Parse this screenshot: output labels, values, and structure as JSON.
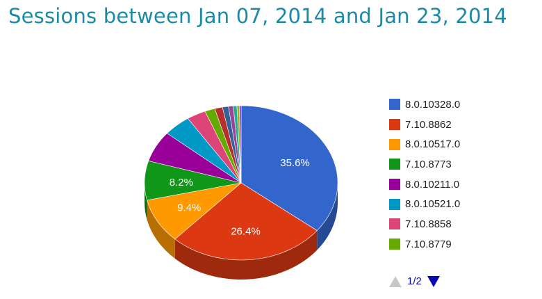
{
  "chart_data": {
    "type": "pie",
    "title": "Sessions between Jan 07, 2014 and Jan 23, 2014",
    "slices": [
      {
        "label": "8.0.10328.0",
        "value": 35.6,
        "color": "#3366cc",
        "data_label": "35.6%"
      },
      {
        "label": "7.10.8862",
        "value": 26.4,
        "color": "#dc3912",
        "data_label": "26.4%"
      },
      {
        "label": "8.0.10517.0",
        "value": 9.4,
        "color": "#ff9900",
        "data_label": "9.4%"
      },
      {
        "label": "7.10.8773",
        "value": 8.2,
        "color": "#109618",
        "data_label": "8.2%"
      },
      {
        "label": "8.0.10211.0",
        "value": 6.5,
        "color": "#990099",
        "data_label": ""
      },
      {
        "label": "8.0.10521.0",
        "value": 4.6,
        "color": "#0099c6",
        "data_label": ""
      },
      {
        "label": "7.10.8858",
        "value": 3.2,
        "color": "#dd4477",
        "data_label": ""
      },
      {
        "label": "7.10.8779",
        "value": 1.7,
        "color": "#66aa00",
        "data_label": ""
      },
      {
        "value": 1.3,
        "color": "#b82e2e",
        "data_label": ""
      },
      {
        "value": 1.0,
        "color": "#316395",
        "data_label": ""
      },
      {
        "value": 0.8,
        "color": "#994499",
        "data_label": ""
      },
      {
        "value": 0.6,
        "color": "#22aa99",
        "data_label": ""
      },
      {
        "value": 0.4,
        "color": "#aaaa11",
        "data_label": ""
      },
      {
        "value": 0.3,
        "color": "#6633cc",
        "data_label": ""
      }
    ],
    "legend": {
      "placement": "right",
      "visible_count": 8,
      "page": "1/2"
    }
  }
}
